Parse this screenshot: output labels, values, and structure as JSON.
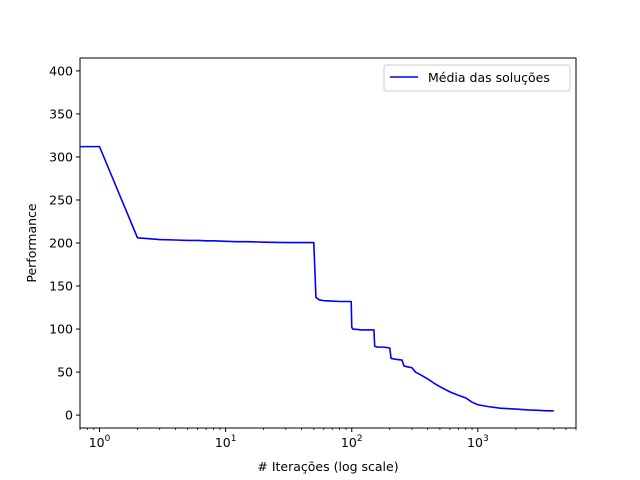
{
  "chart_data": {
    "type": "line",
    "title": "",
    "xlabel": "# Iterações (log scale)",
    "ylabel": "Performance",
    "xscale": "log",
    "xlim": [
      0.7,
      6000
    ],
    "ylim": [
      -15,
      415
    ],
    "x_ticks": [
      {
        "value": 1,
        "base": "10",
        "exp": "0"
      },
      {
        "value": 10,
        "base": "10",
        "exp": "1"
      },
      {
        "value": 100,
        "base": "10",
        "exp": "2"
      },
      {
        "value": 1000,
        "base": "10",
        "exp": "3"
      }
    ],
    "y_ticks": [
      0,
      50,
      100,
      150,
      200,
      250,
      300,
      350,
      400
    ],
    "y_tick_labels": [
      "0",
      "50",
      "100",
      "150",
      "200",
      "250",
      "300",
      "350",
      "400"
    ],
    "grid": false,
    "legend": {
      "position": "top-right"
    },
    "series": [
      {
        "name": "Média das soluções",
        "color": "#0000ff",
        "x": [
          0.7,
          1,
          2,
          3,
          4,
          5,
          6,
          7,
          8,
          10,
          12,
          15,
          20,
          30,
          40,
          50,
          52,
          55,
          60,
          70,
          80,
          90,
          99,
          100,
          102,
          110,
          120,
          130,
          150,
          152,
          160,
          180,
          200,
          205,
          220,
          250,
          260,
          280,
          300,
          320,
          350,
          400,
          450,
          500,
          600,
          700,
          800,
          900,
          1000,
          1200,
          1500,
          2000,
          2500,
          3000,
          3500,
          4000
        ],
        "y": [
          312,
          312,
          206,
          204,
          203.5,
          203,
          203,
          202.5,
          202.5,
          202,
          201.5,
          201.5,
          201,
          200.5,
          200.5,
          200.5,
          137,
          134,
          133,
          132.5,
          132,
          132,
          132,
          102,
          100,
          99.5,
          99,
          99,
          99,
          80,
          79,
          79,
          78,
          66,
          65,
          64,
          57,
          56,
          55,
          50,
          47,
          42,
          37,
          33,
          27,
          23,
          20,
          15,
          12,
          10,
          8,
          7,
          6,
          5.5,
          5,
          5
        ]
      }
    ]
  }
}
